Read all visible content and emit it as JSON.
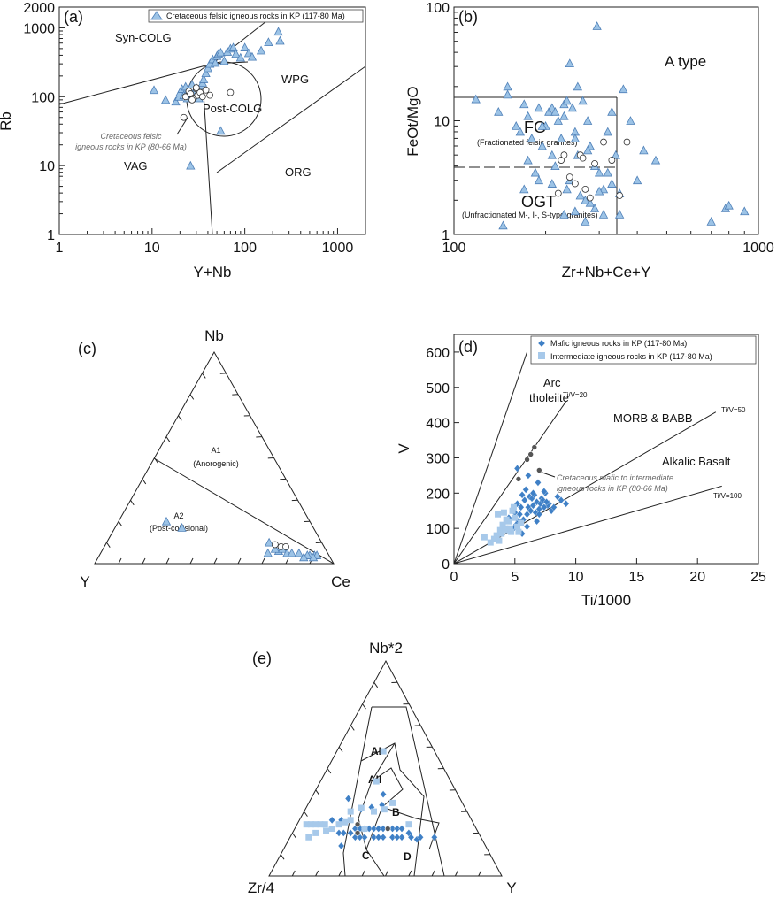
{
  "chart_data": [
    {
      "panel_label": "(a)",
      "type": "scatter",
      "xlabel": "Y+Nb",
      "ylabel": "Rb",
      "xscale": "log",
      "yscale": "log",
      "xlim": [
        1,
        2000
      ],
      "ylim": [
        1,
        2000
      ],
      "x_ticks": [
        "1",
        "10",
        "100",
        "1000"
      ],
      "y_ticks": [
        "1",
        "10",
        "100",
        "1000",
        "2000"
      ],
      "legend": {
        "placement": "top-right",
        "entries": [
          "Cretaceous felsic igneous rocks in KP (117-80 Ma)"
        ]
      },
      "fields": [
        "Syn-COLG",
        "WPG",
        "Post-COLG",
        "VAG",
        "ORG"
      ],
      "annotation": "Cretaceous felsic igneous rocks in KP (80-66 Ma)",
      "series": [
        {
          "name": "Cretaceous felsic igneous rocks in KP (117-80 Ma)",
          "marker": "triangle",
          "x": [
            10.5,
            14,
            18,
            19.5,
            20,
            21,
            22,
            23,
            24,
            25,
            26,
            27,
            28,
            29,
            30,
            31,
            32,
            33,
            34,
            35,
            36,
            38,
            40,
            42,
            45,
            48,
            50,
            52,
            55,
            60,
            65,
            70,
            75,
            80,
            90,
            100,
            110,
            120,
            150,
            180,
            230,
            240,
            26,
            55
          ],
          "y": [
            125,
            90,
            85,
            100,
            115,
            130,
            105,
            140,
            95,
            120,
            110,
            150,
            100,
            125,
            135,
            105,
            95,
            115,
            145,
            160,
            180,
            220,
            260,
            300,
            350,
            310,
            390,
            420,
            440,
            330,
            450,
            500,
            520,
            420,
            370,
            520,
            430,
            380,
            470,
            620,
            880,
            650,
            10,
            32
          ]
        },
        {
          "name": "Cretaceous felsic igneous rocks in KP (80-66 Ma)",
          "marker": "circle",
          "x": [
            23,
            25,
            26,
            28,
            30,
            31,
            33,
            35,
            38,
            42,
            27,
            22,
            30,
            70
          ],
          "y": [
            100,
            120,
            110,
            95,
            130,
            105,
            115,
            100,
            125,
            105,
            90,
            50,
            135,
            115
          ]
        }
      ]
    },
    {
      "panel_label": "(b)",
      "type": "scatter",
      "xlabel": "Zr+Nb+Ce+Y",
      "ylabel": "FeOt/MgO",
      "xscale": "log",
      "yscale": "log",
      "xlim": [
        100,
        1000
      ],
      "ylim": [
        1,
        100
      ],
      "x_ticks": [
        "100",
        "1000"
      ],
      "y_ticks": [
        "1",
        "10",
        "100"
      ],
      "fields": [
        "A type",
        "FG",
        "(Fractionated felsic granites)",
        "OGT",
        "(Unfractionated M-, I-, S-type granites)"
      ],
      "series": [
        {
          "name": "Cretaceous felsic igneous rocks in KP (117-80 Ma)",
          "marker": "triangle",
          "x": [
            118,
            140,
            150,
            160,
            165,
            170,
            175,
            180,
            185,
            190,
            195,
            200,
            205,
            210,
            215,
            220,
            225,
            230,
            235,
            240,
            245,
            250,
            255,
            260,
            265,
            270,
            275,
            280,
            290,
            300,
            310,
            320,
            330,
            340,
            350,
            360,
            380,
            400,
            420,
            460,
            150,
            170,
            190,
            210,
            230,
            250,
            270,
            290,
            310,
            330,
            350,
            700,
            780,
            800,
            900,
            210,
            230,
            250,
            280,
            300,
            240,
            175,
            195,
            215,
            235,
            255,
            275,
            295,
            320,
            145
          ],
          "y": [
            15.5,
            12,
            17,
            9,
            8,
            14,
            11,
            7,
            3.5,
            13,
            6,
            9,
            12,
            5,
            4,
            10,
            7,
            11,
            2.5,
            3,
            13,
            8,
            5,
            2.2,
            15,
            2,
            10,
            6,
            4,
            3.5,
            2.5,
            8,
            12,
            5,
            2.3,
            19,
            10,
            3,
            5.5,
            4.5,
            20,
            2.5,
            3,
            2.8,
            1.5,
            1.6,
            1.3,
            1.7,
            1.5,
            2.8,
            1.5,
            1.3,
            1.7,
            1.8,
            1.6,
            13,
            14,
            7,
            1.9,
            2.4,
            32,
            4.5,
            9,
            12,
            15,
            20,
            5.5,
            68,
            3.5,
            1.2
          ]
        },
        {
          "name": "Cretaceous felsic igneous rocks in KP (80-66 Ma)",
          "marker": "circle",
          "x": [
            225,
            230,
            240,
            260,
            265,
            270,
            280,
            290,
            310,
            330,
            350,
            370,
            220,
            250
          ],
          "y": [
            4.5,
            5,
            3.2,
            5,
            4.7,
            2.5,
            2.1,
            4.2,
            6.5,
            4.5,
            2.2,
            6.5,
            2.3,
            2.8
          ]
        }
      ]
    },
    {
      "panel_label": "(c)",
      "type": "ternary",
      "apices": [
        "Nb",
        "Y",
        "Ce"
      ],
      "fields": [
        "A1",
        "(Anorogenic)",
        "A2",
        "(Post-collisional)"
      ],
      "series": [
        {
          "name": "Cretaceous felsic igneous rocks in KP (117-80 Ma)",
          "marker": "triangle",
          "Y": [
            0.55,
            0.6,
            0.2,
            0.22,
            0.18,
            0.25,
            0.21,
            0.17,
            0.15,
            0.12,
            0.08,
            0.09,
            0.06,
            0.05,
            0.07,
            0.11
          ],
          "Ce": [
            0.28,
            0.2,
            0.74,
            0.68,
            0.75,
            0.7,
            0.72,
            0.78,
            0.8,
            0.83,
            0.88,
            0.87,
            0.9,
            0.91,
            0.9,
            0.86
          ],
          "Nb": [
            0.17,
            0.2,
            0.06,
            0.1,
            0.07,
            0.05,
            0.07,
            0.05,
            0.05,
            0.05,
            0.04,
            0.04,
            0.04,
            0.04,
            0.03,
            0.03
          ]
        },
        {
          "name": "Cretaceous felsic igneous rocks in KP (80-66 Ma)",
          "marker": "circle",
          "Y": [
            0.18,
            0.16,
            0.2
          ],
          "Ce": [
            0.74,
            0.76,
            0.71
          ],
          "Nb": [
            0.08,
            0.08,
            0.09
          ]
        }
      ]
    },
    {
      "panel_label": "(d)",
      "type": "scatter",
      "xlabel": "Ti/1000",
      "ylabel": "V",
      "xlim": [
        0,
        25
      ],
      "ylim": [
        0,
        650
      ],
      "x_ticks": [
        "0",
        "5",
        "10",
        "15",
        "20",
        "25"
      ],
      "y_ticks": [
        "0",
        "100",
        "200",
        "300",
        "400",
        "500",
        "600"
      ],
      "legend": {
        "placement": "top-left",
        "entries": [
          "Mafic igneous rocks in KP (117-80 Ma)",
          "Intermediate igneous rocks in KP (117-80 Ma)"
        ]
      },
      "fields": [
        "Arc",
        "tholeiite",
        "MORB & BABB",
        "Alkalic Basalt"
      ],
      "line_labels": [
        "Ti/V=20",
        "Ti/V=50",
        "Ti/V=100"
      ],
      "annotation": "Cretaceous mafic to intermediate igneous rocks in KP (80-66 Ma)",
      "series": [
        {
          "name": "Mafic igneous rocks in KP (117-80 Ma)",
          "marker": "diamond",
          "x": [
            4.5,
            4.8,
            5,
            5.2,
            5.5,
            5.8,
            6,
            6.2,
            6.5,
            6.8,
            7,
            7.2,
            7.5,
            7.8,
            8,
            5.3,
            5.6,
            5.9,
            6.1,
            6.4,
            6.7,
            7.1,
            7.4,
            7.7,
            8.2,
            8.8,
            9.2,
            5.1,
            5.4,
            5.7,
            6.3,
            6.6,
            6.9,
            7.3,
            7.6,
            8.5,
            4.9,
            5.6,
            6.0,
            6.8,
            7.0,
            7.4,
            5.2,
            6.1,
            6.5
          ],
          "y": [
            130,
            150,
            145,
            170,
            160,
            180,
            140,
            190,
            165,
            175,
            155,
            185,
            200,
            170,
            150,
            120,
            195,
            210,
            160,
            185,
            145,
            170,
            205,
            165,
            160,
            180,
            170,
            110,
            140,
            125,
            150,
            195,
            230,
            180,
            175,
            190,
            100,
            85,
            105,
            120,
            140,
            160,
            270,
            250,
            200
          ]
        },
        {
          "name": "Intermediate igneous rocks in KP (117-80 Ma)",
          "marker": "square",
          "x": [
            2.5,
            3,
            3.5,
            3.8,
            4,
            4.2,
            4.5,
            4.7,
            5,
            5.2,
            5.5,
            3.6,
            4.1,
            4.4,
            4.8,
            3.3,
            3.9,
            4.6,
            5.3,
            4.3,
            3.7,
            4.9
          ],
          "y": [
            75,
            60,
            80,
            95,
            110,
            100,
            120,
            90,
            130,
            105,
            115,
            140,
            145,
            95,
            150,
            70,
            85,
            100,
            90,
            125,
            65,
            160
          ]
        },
        {
          "name": "Cretaceous mafic to intermediate igneous rocks in KP (80-66 Ma)",
          "marker": "dot",
          "x": [
            5.3,
            6.3,
            6.6,
            7.0,
            6.0
          ],
          "y": [
            240,
            310,
            330,
            265,
            295
          ]
        }
      ]
    },
    {
      "panel_label": "(e)",
      "type": "ternary",
      "apices": [
        "Nb*2",
        "Zr/4",
        "Y"
      ],
      "fields": [
        "AI",
        "AII",
        "B",
        "C",
        "D"
      ],
      "series": [
        {
          "name": "Mafic igneous rocks in KP (117-80 Ma)",
          "marker": "diamond",
          "Zr4": [
            0.6,
            0.58,
            0.55,
            0.52,
            0.5,
            0.48,
            0.46,
            0.44,
            0.42,
            0.4,
            0.38,
            0.36,
            0.34,
            0.32,
            0.3,
            0.54,
            0.5,
            0.46,
            0.42,
            0.38,
            0.34,
            0.3,
            0.28,
            0.26,
            0.5,
            0.45,
            0.4,
            0.35,
            0.6,
            0.56,
            0.52,
            0.44,
            0.36,
            0.32,
            0.2,
            0.62,
            0.48
          ],
          "Y": [
            0.2,
            0.22,
            0.25,
            0.26,
            0.28,
            0.3,
            0.32,
            0.34,
            0.36,
            0.38,
            0.4,
            0.42,
            0.44,
            0.46,
            0.5,
            0.28,
            0.32,
            0.36,
            0.4,
            0.44,
            0.48,
            0.52,
            0.55,
            0.56,
            0.2,
            0.24,
            0.28,
            0.32,
            0.14,
            0.18,
            0.3,
            0.38,
            0.46,
            0.3,
            0.62,
            0.24,
            0.16
          ],
          "Nb2": [
            0.2,
            0.2,
            0.2,
            0.22,
            0.22,
            0.22,
            0.22,
            0.22,
            0.22,
            0.22,
            0.22,
            0.22,
            0.22,
            0.22,
            0.2,
            0.18,
            0.18,
            0.18,
            0.18,
            0.18,
            0.18,
            0.18,
            0.17,
            0.18,
            0.3,
            0.31,
            0.32,
            0.33,
            0.26,
            0.26,
            0.18,
            0.18,
            0.18,
            0.38,
            0.18,
            0.14,
            0.36
          ]
        },
        {
          "name": "Intermediate igneous rocks in KP (117-80 Ma)",
          "marker": "square",
          "Zr4": [
            0.72,
            0.7,
            0.68,
            0.66,
            0.64,
            0.7,
            0.74,
            0.65,
            0.62,
            0.58,
            0.55,
            0.52,
            0.5,
            0.45,
            0.4,
            0.35,
            0.3,
            0.28,
            0.32,
            0.22,
            0.48
          ],
          "Y": [
            0.04,
            0.06,
            0.08,
            0.1,
            0.12,
            0.1,
            0.08,
            0.14,
            0.16,
            0.18,
            0.2,
            0.22,
            0.2,
            0.24,
            0.3,
            0.34,
            0.36,
            0.48,
            0.24,
            0.2,
            0.3
          ],
          "Nb2": [
            0.24,
            0.24,
            0.24,
            0.24,
            0.24,
            0.2,
            0.18,
            0.21,
            0.22,
            0.24,
            0.25,
            0.26,
            0.3,
            0.32,
            0.3,
            0.31,
            0.34,
            0.24,
            0.44,
            0.58,
            0.22
          ]
        },
        {
          "name": "Cretaceous mafic to intermediate igneous rocks in KP (80-66 Ma)",
          "marker": "dot",
          "Zr4": [
            0.52,
            0.38,
            0.5
          ],
          "Y": [
            0.28,
            0.4,
            0.26
          ],
          "Nb2": [
            0.2,
            0.22,
            0.24
          ]
        }
      ]
    }
  ]
}
